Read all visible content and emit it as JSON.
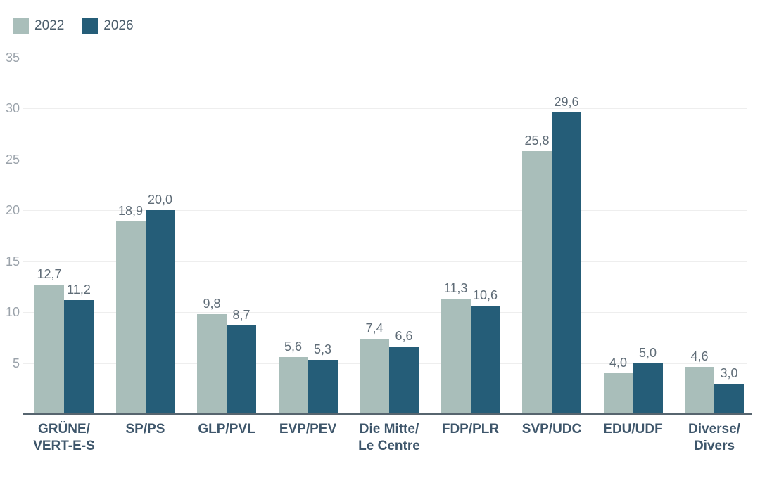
{
  "colors": {
    "series_2022": "#a9beba",
    "series_2026": "#255d78",
    "value_label": "#5f6c77",
    "tick_label": "#9aa2aa",
    "category_label": "#3e566b",
    "gridline": "#eeeeee",
    "axis_line": "#57656f",
    "background": "#ffffff"
  },
  "chart_data": {
    "type": "bar",
    "title": "",
    "legend_position": "top-left",
    "grid": true,
    "decimal_separator": ",",
    "categories": [
      [
        "GRÜNE/",
        "VERT-E-S"
      ],
      [
        "SP/PS"
      ],
      [
        "GLP/PVL"
      ],
      [
        "EVP/PEV"
      ],
      [
        "Die Mitte/",
        "Le Centre"
      ],
      [
        "FDP/PLR"
      ],
      [
        "SVP/UDC"
      ],
      [
        "EDU/UDF"
      ],
      [
        "Diverse/",
        "Divers"
      ]
    ],
    "series": [
      {
        "name": "2022",
        "color": "#a9beba",
        "values": [
          12.7,
          18.9,
          9.8,
          5.6,
          7.4,
          11.3,
          25.8,
          4.0,
          4.6
        ],
        "labels": [
          "12,7",
          "18,9",
          "9,8",
          "5,6",
          "7,4",
          "11,3",
          "25,8",
          "4,0",
          "4,6"
        ]
      },
      {
        "name": "2026",
        "color": "#255d78",
        "values": [
          11.2,
          20.0,
          8.7,
          5.3,
          6.6,
          10.6,
          29.6,
          5.0,
          3.0
        ],
        "labels": [
          "11,2",
          "20,0",
          "8,7",
          "5,3",
          "6,6",
          "10,6",
          "29,6",
          "5,0",
          "3,0"
        ]
      }
    ],
    "y_axis": {
      "min": 0,
      "max": 35,
      "ticks": [
        5,
        10,
        15,
        20,
        25,
        30,
        35
      ]
    },
    "x_axis": {
      "label": ""
    }
  }
}
